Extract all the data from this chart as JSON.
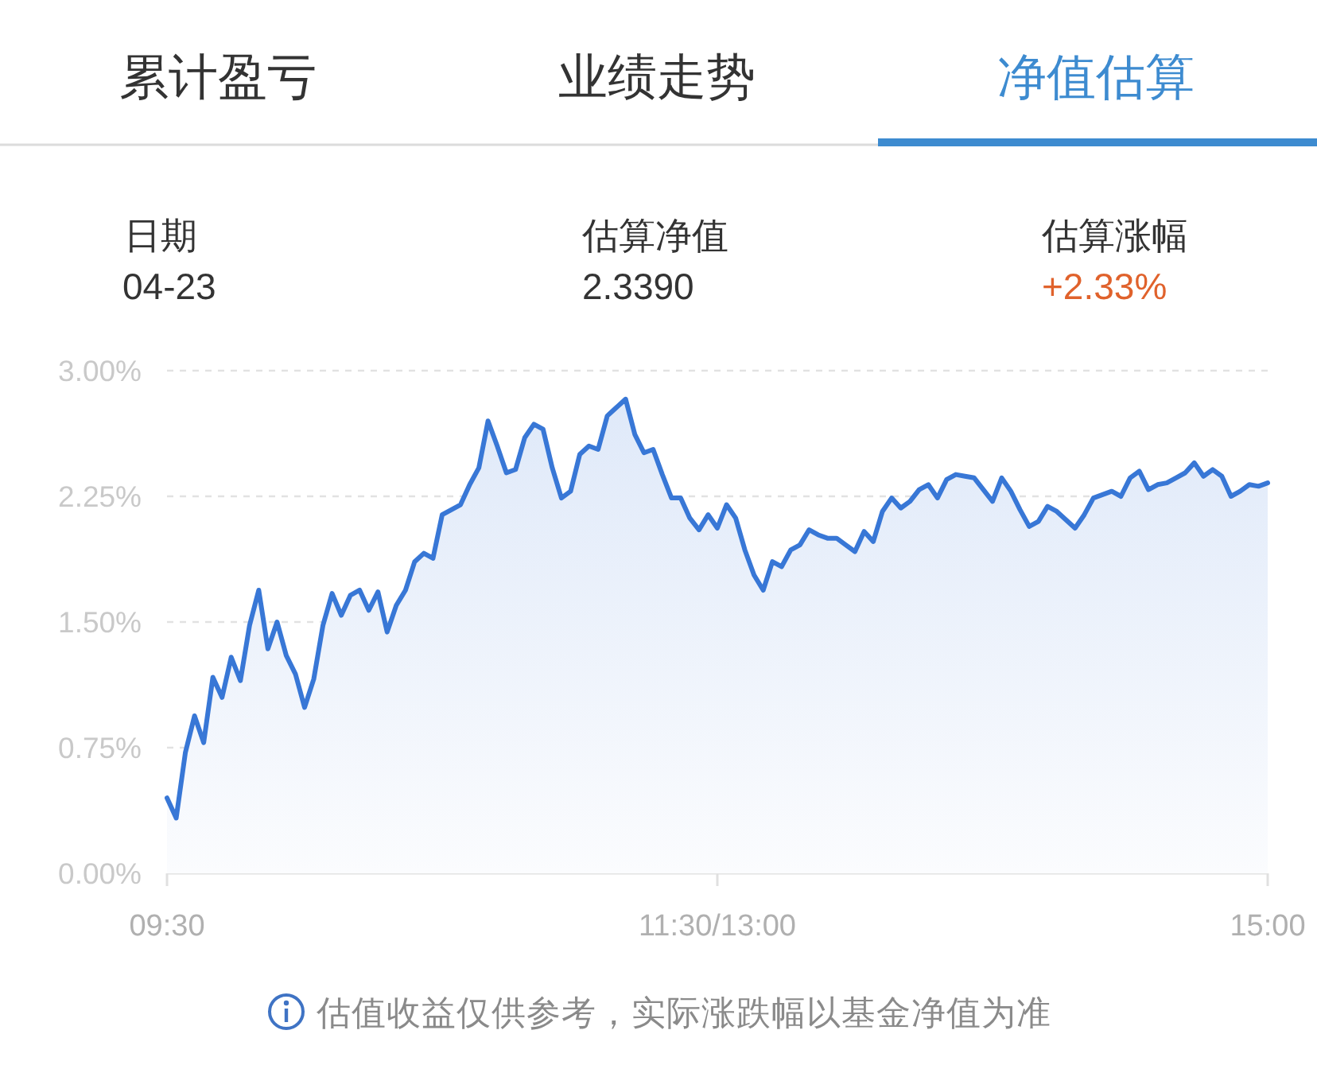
{
  "chart_data": {
    "type": "area",
    "annotations": [
      "累计盈亏",
      "业绩走势",
      "净值估算",
      "日期",
      "04-23",
      "估算净值",
      "2.3390",
      "估算涨幅",
      "+2.33%",
      "估值收益仅供参考，实际涨跌幅以基金净值为准"
    ],
    "categories": [
      "09:30",
      null,
      null,
      null,
      null,
      null,
      null,
      null,
      null,
      null,
      null,
      null,
      null,
      null,
      null,
      null,
      null,
      null,
      null,
      null,
      null,
      null,
      null,
      null,
      null,
      null,
      null,
      null,
      null,
      null,
      null,
      null,
      null,
      null,
      null,
      null,
      null,
      null,
      null,
      null,
      null,
      null,
      null,
      null,
      null,
      null,
      null,
      null,
      null,
      null,
      null,
      null,
      null,
      null,
      null,
      null,
      null,
      null,
      null,
      null,
      "11:30/13:00",
      null,
      null,
      null,
      null,
      null,
      null,
      null,
      null,
      null,
      null,
      null,
      null,
      null,
      null,
      null,
      null,
      null,
      null,
      null,
      null,
      null,
      null,
      null,
      null,
      null,
      null,
      null,
      null,
      null,
      null,
      null,
      null,
      null,
      null,
      null,
      null,
      null,
      null,
      null,
      null,
      null,
      null,
      null,
      null,
      null,
      null,
      null,
      null,
      null,
      null,
      null,
      null,
      null,
      null,
      null,
      null,
      null,
      null,
      null,
      "15:00"
    ],
    "values": [
      0.45,
      0.33,
      0.72,
      0.94,
      0.78,
      1.17,
      1.05,
      1.29,
      1.15,
      1.48,
      1.69,
      1.34,
      1.5,
      1.3,
      1.19,
      0.99,
      1.16,
      1.48,
      1.67,
      1.54,
      1.66,
      1.69,
      1.57,
      1.68,
      1.44,
      1.6,
      1.69,
      1.86,
      1.91,
      1.88,
      2.14,
      2.17,
      2.2,
      2.32,
      2.42,
      2.7,
      2.55,
      2.39,
      2.41,
      2.6,
      2.68,
      2.65,
      2.42,
      2.24,
      2.28,
      2.5,
      2.55,
      2.53,
      2.73,
      2.78,
      2.83,
      2.62,
      2.51,
      2.53,
      2.38,
      2.24,
      2.24,
      2.12,
      2.05,
      2.14,
      2.06,
      2.2,
      2.12,
      1.93,
      1.78,
      1.69,
      1.86,
      1.83,
      1.93,
      1.96,
      2.05,
      2.02,
      2.0,
      2.0,
      1.96,
      1.92,
      2.04,
      1.98,
      2.16,
      2.24,
      2.18,
      2.22,
      2.29,
      2.32,
      2.24,
      2.35,
      2.38,
      2.37,
      2.36,
      2.29,
      2.22,
      2.36,
      2.28,
      2.17,
      2.07,
      2.1,
      2.19,
      2.16,
      2.11,
      2.06,
      2.14,
      2.24,
      2.26,
      2.28,
      2.25,
      2.36,
      2.4,
      2.29,
      2.32,
      2.33,
      2.36,
      2.39,
      2.45,
      2.37,
      2.41,
      2.37,
      2.25,
      2.28,
      2.32,
      2.31,
      2.33
    ],
    "color": "#3877d6",
    "ylim": [
      0,
      3
    ],
    "yticks": [
      {
        "value": 0,
        "label": "0.00%"
      },
      {
        "value": 0.75,
        "label": "0.75%"
      },
      {
        "value": 1.5,
        "label": "1.50%"
      },
      {
        "value": 2.25,
        "label": "2.25%"
      },
      {
        "value": 3,
        "label": "3.00%"
      }
    ],
    "grid": "y"
  }
}
